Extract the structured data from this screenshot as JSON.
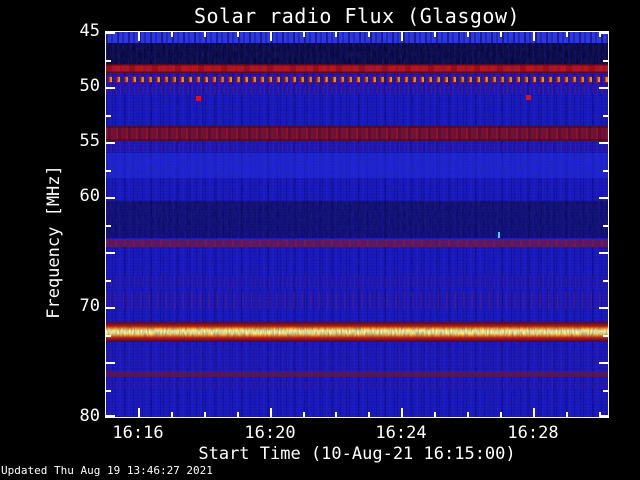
{
  "title": "Solar radio Flux (Glasgow)",
  "footer": {
    "updated": "Updated Thu Aug 19 13:46:27 2021"
  },
  "axes": {
    "y": {
      "label": "Frequency [MHz]",
      "min_mhz": 45,
      "max_mhz": 80,
      "labeled_ticks": [
        45,
        50,
        55,
        60,
        70,
        80
      ],
      "major_step_mhz": 5,
      "minor_step_mhz": 2.5
    },
    "x": {
      "label": "Start Time (10-Aug-21 16:15:00)",
      "start_time": "16:15:00",
      "duration_minutes": 15.25,
      "labeled_ticks": [
        {
          "minute": 1,
          "label": "16:16"
        },
        {
          "minute": 5,
          "label": "16:20"
        },
        {
          "minute": 9,
          "label": "16:24"
        },
        {
          "minute": 13,
          "label": "16:28"
        }
      ],
      "minor_step_minutes": 1,
      "major_minutes": [
        1,
        5,
        9,
        13
      ]
    }
  },
  "chart_data": {
    "type": "heatmap",
    "title": "Solar radio Flux (Glasgow)",
    "xlabel": "Start Time (10-Aug-21 16:15:00)",
    "ylabel": "Frequency [MHz]",
    "x_range": [
      "16:15:00",
      "16:30:15"
    ],
    "freq_range_mhz": [
      45,
      80
    ],
    "duration_minutes": 15.25,
    "background_level": "blue continuum with vertical time-column noise",
    "bands": [
      {
        "f_lo": 45.0,
        "f_hi": 45.95,
        "kind": "bright_band",
        "color": "#2d3af0",
        "opacity": 1,
        "desc": "bright blue band along top edge with dark streaks"
      },
      {
        "f_lo": 45.95,
        "f_hi": 47.9,
        "kind": "dark_zone",
        "color": "#04041c",
        "opacity": 0.78,
        "desc": "very dark quiet zone"
      },
      {
        "f_lo": 47.9,
        "f_hi": 48.75,
        "kind": "rfi_red",
        "color": "#c81212",
        "opacity": 1,
        "desc": "solid red interference band ~48.3 MHz"
      },
      {
        "f_lo": 48.95,
        "f_hi": 49.65,
        "kind": "rfi_dashed",
        "color": "",
        "opacity": 1,
        "desc": "periodic orange-cored dashes ~49.3 MHz"
      },
      {
        "f_lo": 49.9,
        "f_hi": 50.65,
        "kind": "speckle_purple",
        "color": "",
        "opacity": 0.5,
        "desc": "faint speckled purple band"
      },
      {
        "f_lo": 53.55,
        "f_hi": 54.95,
        "kind": "rfi_maroon",
        "color": "#7c0d26",
        "opacity": 1,
        "desc": "dark red interference band ~54.2 MHz"
      },
      {
        "f_lo": 55.05,
        "f_hi": 55.95,
        "kind": "speckle_purple",
        "color": "",
        "opacity": 0.38,
        "desc": "faint speckled band"
      },
      {
        "f_lo": 55.95,
        "f_hi": 58.3,
        "kind": "bright_zone",
        "color": "#2230ec",
        "opacity": 0.55,
        "desc": "brighter blue zone"
      },
      {
        "f_lo": 60.4,
        "f_hi": 63.7,
        "kind": "dark_zone",
        "color": "#070733",
        "opacity": 0.55,
        "desc": "dark navy zone"
      },
      {
        "f_lo": 63.85,
        "f_hi": 64.55,
        "kind": "rfi_purple",
        "color": "#6f1550",
        "opacity": 0.9,
        "desc": "purple interference line ~64.2 MHz"
      },
      {
        "f_lo": 67.2,
        "f_hi": 68.3,
        "kind": "speckle_purple",
        "color": "",
        "opacity": 0.3,
        "desc": "faint purple haze"
      },
      {
        "f_lo": 68.6,
        "f_hi": 70.2,
        "kind": "speckle_red",
        "color": "",
        "opacity": 0.55,
        "desc": "red-flecked zone"
      },
      {
        "f_lo": 71.4,
        "f_hi": 73.2,
        "kind": "strong_line",
        "color": "",
        "opacity": 1,
        "desc": "intense emission line ~72.5 MHz, yellow-white core with red wings"
      },
      {
        "f_lo": 73.6,
        "f_hi": 75.6,
        "kind": "speckle_purple",
        "color": "",
        "opacity": 0.18,
        "desc": "very faint flecks"
      },
      {
        "f_lo": 75.85,
        "f_hi": 76.35,
        "kind": "rfi_thin",
        "color": "#7a1034",
        "opacity": 0.75,
        "desc": "thin maroon line ~76.1 MHz"
      },
      {
        "f_lo": 76.8,
        "f_hi": 77.5,
        "kind": "speckle_purple",
        "color": "",
        "opacity": 0.3,
        "desc": "faint purple band"
      }
    ],
    "point_events": [
      {
        "time": "16:17:47",
        "freq_mhz": 51.0,
        "kind": "red",
        "desc": "isolated red burst pixel"
      },
      {
        "time": "16:27:50",
        "freq_mhz": 50.9,
        "kind": "red",
        "desc": "isolated red burst pixel"
      },
      {
        "time": "16:26:58",
        "freq_mhz": 63.4,
        "kind": "cyan",
        "desc": "small light-blue streak"
      }
    ]
  },
  "colors": {
    "background": "#000000",
    "frame": "#ffffff",
    "text": "#ffffff",
    "plot_base_blue": "#1717cd",
    "rfi_red": "#c81212",
    "dash_orange": "#ff9c14",
    "line_core_white": "#fffdd8",
    "line_yellow": "#ffef64",
    "maroon": "#7c0d26",
    "purple": "#6f1550"
  }
}
